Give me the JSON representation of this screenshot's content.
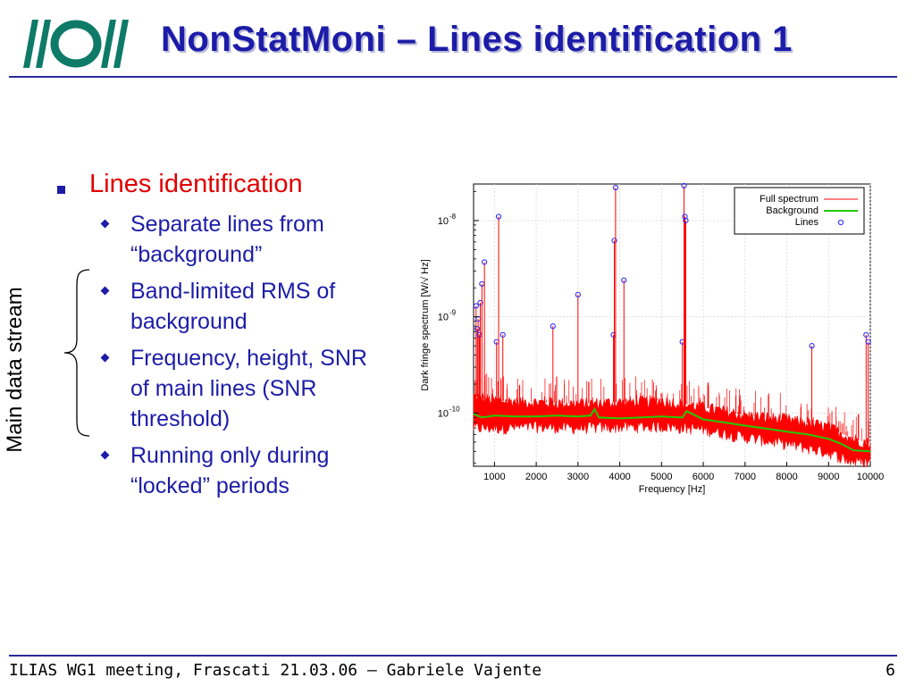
{
  "slide": {
    "title": "NonStatMoni – Lines identification 1",
    "accent_color": "#1c1ca8",
    "heading_color": "#e00000",
    "logo_icon": "ego-virgo-logo-icon"
  },
  "content": {
    "heading": "Lines identification",
    "bullets": [
      {
        "lines": [
          "Separate lines from",
          "“background”"
        ]
      },
      {
        "lines": [
          "Band-limited RMS of",
          "background"
        ]
      },
      {
        "lines": [
          "Frequency, height, SNR",
          "of main lines (SNR",
          "threshold)"
        ]
      },
      {
        "lines": [
          "Running only during",
          "“locked” periods"
        ]
      }
    ],
    "side_label": "Main data stream"
  },
  "chart_data": {
    "type": "line",
    "xlabel": "Frequency [Hz]",
    "ylabel": "Dark fringe spectrum [W/√ Hz]",
    "xlim": [
      500,
      10000
    ],
    "x_ticks": [
      1000,
      2000,
      3000,
      4000,
      5000,
      6000,
      7000,
      8000,
      9000,
      10000
    ],
    "ylim": [
      2.8e-11,
      2.4e-08
    ],
    "log_y": true,
    "y_ticks": [
      {
        "value": 1e-10,
        "base": "10",
        "exp": "-10"
      },
      {
        "value": 1e-09,
        "base": "10",
        "exp": "-9"
      },
      {
        "value": 1e-08,
        "base": "10",
        "exp": "-8"
      }
    ],
    "legend_position": "top-right",
    "colors": {
      "full": "#ff0000",
      "background": "#22cc00",
      "lines": "#2222ff"
    },
    "series": [
      {
        "name": "Full spectrum",
        "note_type": "noise-band",
        "x": [
          500,
          1000,
          2000,
          3000,
          4000,
          5000,
          6000,
          7000,
          8000,
          9000,
          9500,
          10000
        ],
        "y_low": [
          7e-11,
          7e-11,
          7.2e-11,
          7e-11,
          7.2e-11,
          7.3e-11,
          6.8e-11,
          5.6e-11,
          4.8e-11,
          3.9e-11,
          3.2e-11,
          3.1e-11
        ],
        "y_high": [
          1.5e-10,
          1.35e-10,
          1.3e-10,
          1.25e-10,
          1.3e-10,
          1.35e-10,
          1.15e-10,
          9.5e-11,
          8.6e-11,
          7.2e-11,
          5.6e-11,
          4.8e-11
        ]
      },
      {
        "name": "Background",
        "x": [
          500,
          700,
          1000,
          1500,
          2000,
          2500,
          3000,
          3300,
          3400,
          3500,
          4000,
          4500,
          5000,
          5500,
          5600,
          6000,
          6500,
          7000,
          7500,
          8000,
          8500,
          9000,
          9300,
          9600,
          10000
        ],
        "y": [
          9.8e-11,
          9e-11,
          9.4e-11,
          9.2e-11,
          9.2e-11,
          9.4e-11,
          9.2e-11,
          9.4e-11,
          1.1e-10,
          9e-11,
          8.8e-11,
          9e-11,
          9.2e-11,
          9e-11,
          1.05e-10,
          8.6e-11,
          8e-11,
          7.4e-11,
          6.9e-11,
          6.4e-11,
          6e-11,
          5.4e-11,
          4.8e-11,
          4.1e-11,
          4e-11
        ]
      },
      {
        "name": "Lines",
        "x": [
          560,
          590,
          610,
          640,
          660,
          700,
          760,
          1050,
          1100,
          1200,
          2400,
          3000,
          3850,
          3870,
          3900,
          4100,
          5500,
          5540,
          5560,
          5580,
          8600,
          9900,
          9950
        ],
        "y": [
          1.3e-09,
          7.5e-10,
          9.5e-10,
          6.5e-10,
          1.4e-09,
          2.2e-09,
          3.7e-09,
          5.5e-10,
          1.1e-08,
          6.5e-10,
          8e-10,
          1.7e-09,
          6.5e-10,
          6.2e-09,
          2.2e-08,
          2.4e-09,
          5.5e-10,
          2.3e-08,
          1.1e-08,
          1e-08,
          5e-10,
          6.5e-10,
          5.5e-10
        ]
      }
    ]
  },
  "footer": {
    "text": "ILIAS WG1 meeting, Frascati 21.03.06 – Gabriele Vajente",
    "page": "6"
  }
}
